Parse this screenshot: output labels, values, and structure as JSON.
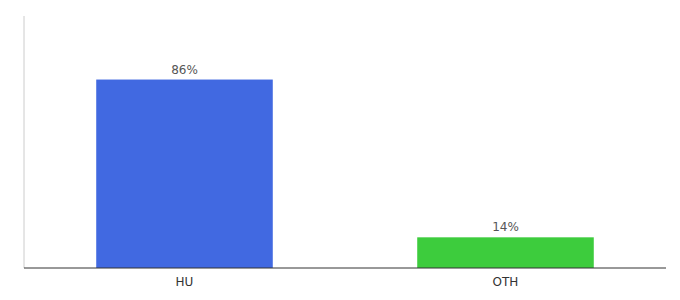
{
  "chart_data": {
    "type": "bar",
    "categories": [
      "HU",
      "OTH"
    ],
    "values": [
      86,
      14
    ],
    "value_labels": [
      "86%",
      "14%"
    ],
    "colors": [
      "#4169e1",
      "#3dcc3d"
    ],
    "ylim": [
      0,
      115
    ],
    "yticks": [],
    "grid": false,
    "data_labels": true,
    "tick_labels": "x"
  }
}
